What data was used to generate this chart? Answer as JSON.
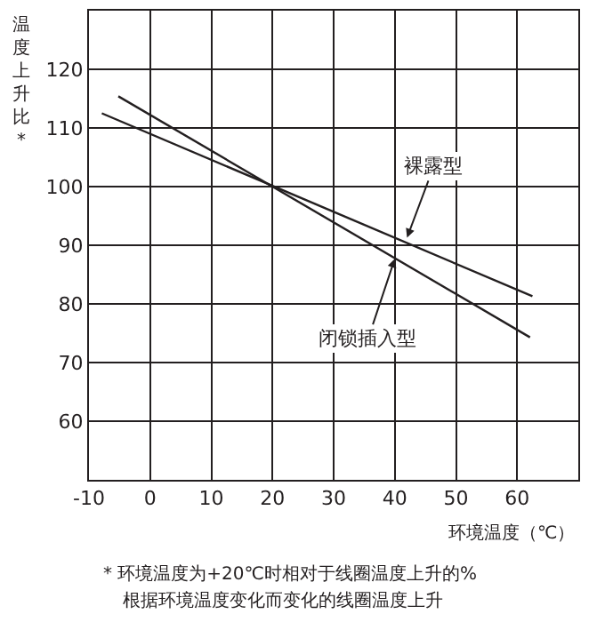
{
  "chart_data": {
    "type": "line",
    "ylabel": "温度上升比*",
    "xlabel": "环境温度（℃）",
    "series": [
      {
        "color": "#231f20",
        "x": [
          -7.9,
          62.5
        ],
        "values": [
          112.5,
          81.3
        ]
      },
      {
        "color": "#231f20",
        "x": [
          -5.2,
          62.1
        ],
        "values": [
          115.4,
          74.3
        ]
      }
    ],
    "annotations": [
      {
        "text": "裸露型",
        "x": 42,
        "y": 91.3
      },
      {
        "text": "闭锁插入型",
        "x": 40,
        "y": 87.7
      },
      "* 环境温度为+20℃时相对于线圈温度上升的%",
      "根据环境温度变化而变化的线圈温度上升"
    ],
    "xlim": [
      -10,
      70
    ],
    "ylim": [
      50,
      130
    ],
    "xticks": [
      -10,
      0,
      10,
      20,
      30,
      40,
      50,
      60
    ],
    "yticks": [
      60,
      70,
      80,
      90,
      100,
      110,
      120
    ],
    "grid": true,
    "marker": "none",
    "line_style": "solid"
  }
}
